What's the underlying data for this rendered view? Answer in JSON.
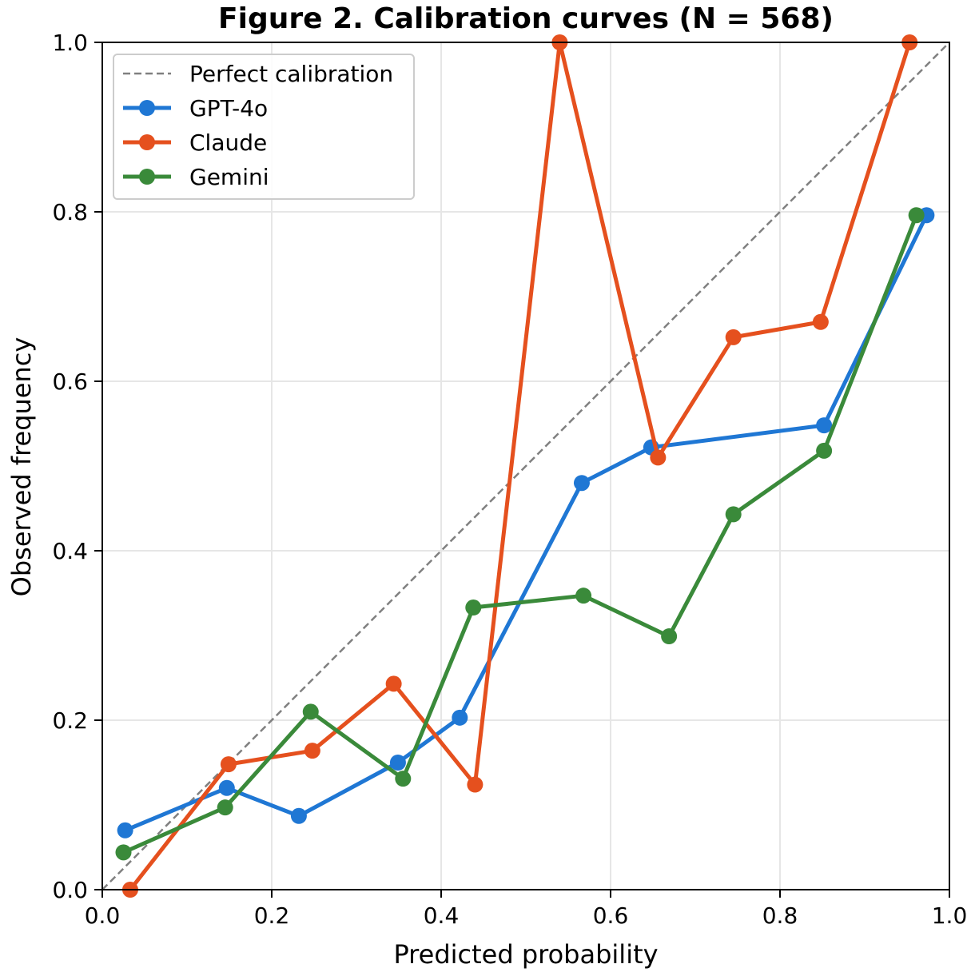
{
  "chart_data": {
    "type": "line",
    "title": "Figure 2. Calibration curves (N = 568)",
    "xlabel": "Predicted probability",
    "ylabel": "Observed frequency",
    "xlim": [
      0.0,
      1.0
    ],
    "ylim": [
      0.0,
      1.0
    ],
    "xticks": [
      "0.0",
      "0.2",
      "0.4",
      "0.6",
      "0.8",
      "1.0"
    ],
    "yticks": [
      "0.0",
      "0.2",
      "0.4",
      "0.6",
      "0.8",
      "1.0"
    ],
    "grid": true,
    "legend_position": "top-left",
    "reference": {
      "name": "Perfect calibration",
      "color": "#808080",
      "style": "dashed",
      "x": [
        0.0,
        1.0
      ],
      "y": [
        0.0,
        1.0
      ]
    },
    "series": [
      {
        "name": "GPT-4o",
        "color": "#1f77d4",
        "x": [
          0.027,
          0.147,
          0.232,
          0.349,
          0.422,
          0.566,
          0.648,
          0.852,
          0.973
        ],
        "y": [
          0.07,
          0.12,
          0.087,
          0.15,
          0.203,
          0.48,
          0.522,
          0.548,
          0.796
        ]
      },
      {
        "name": "Claude",
        "color": "#e5501e",
        "x": [
          0.033,
          0.149,
          0.248,
          0.344,
          0.44,
          0.54,
          0.656,
          0.745,
          0.848,
          0.953
        ],
        "y": [
          0.0,
          0.148,
          0.164,
          0.243,
          0.124,
          1.0,
          0.51,
          0.652,
          0.67,
          1.0
        ]
      },
      {
        "name": "Gemini",
        "color": "#3a8a3a",
        "x": [
          0.025,
          0.145,
          0.246,
          0.355,
          0.438,
          0.568,
          0.669,
          0.745,
          0.852,
          0.961
        ],
        "y": [
          0.044,
          0.097,
          0.21,
          0.131,
          0.333,
          0.347,
          0.299,
          0.443,
          0.518,
          0.796
        ]
      }
    ]
  }
}
